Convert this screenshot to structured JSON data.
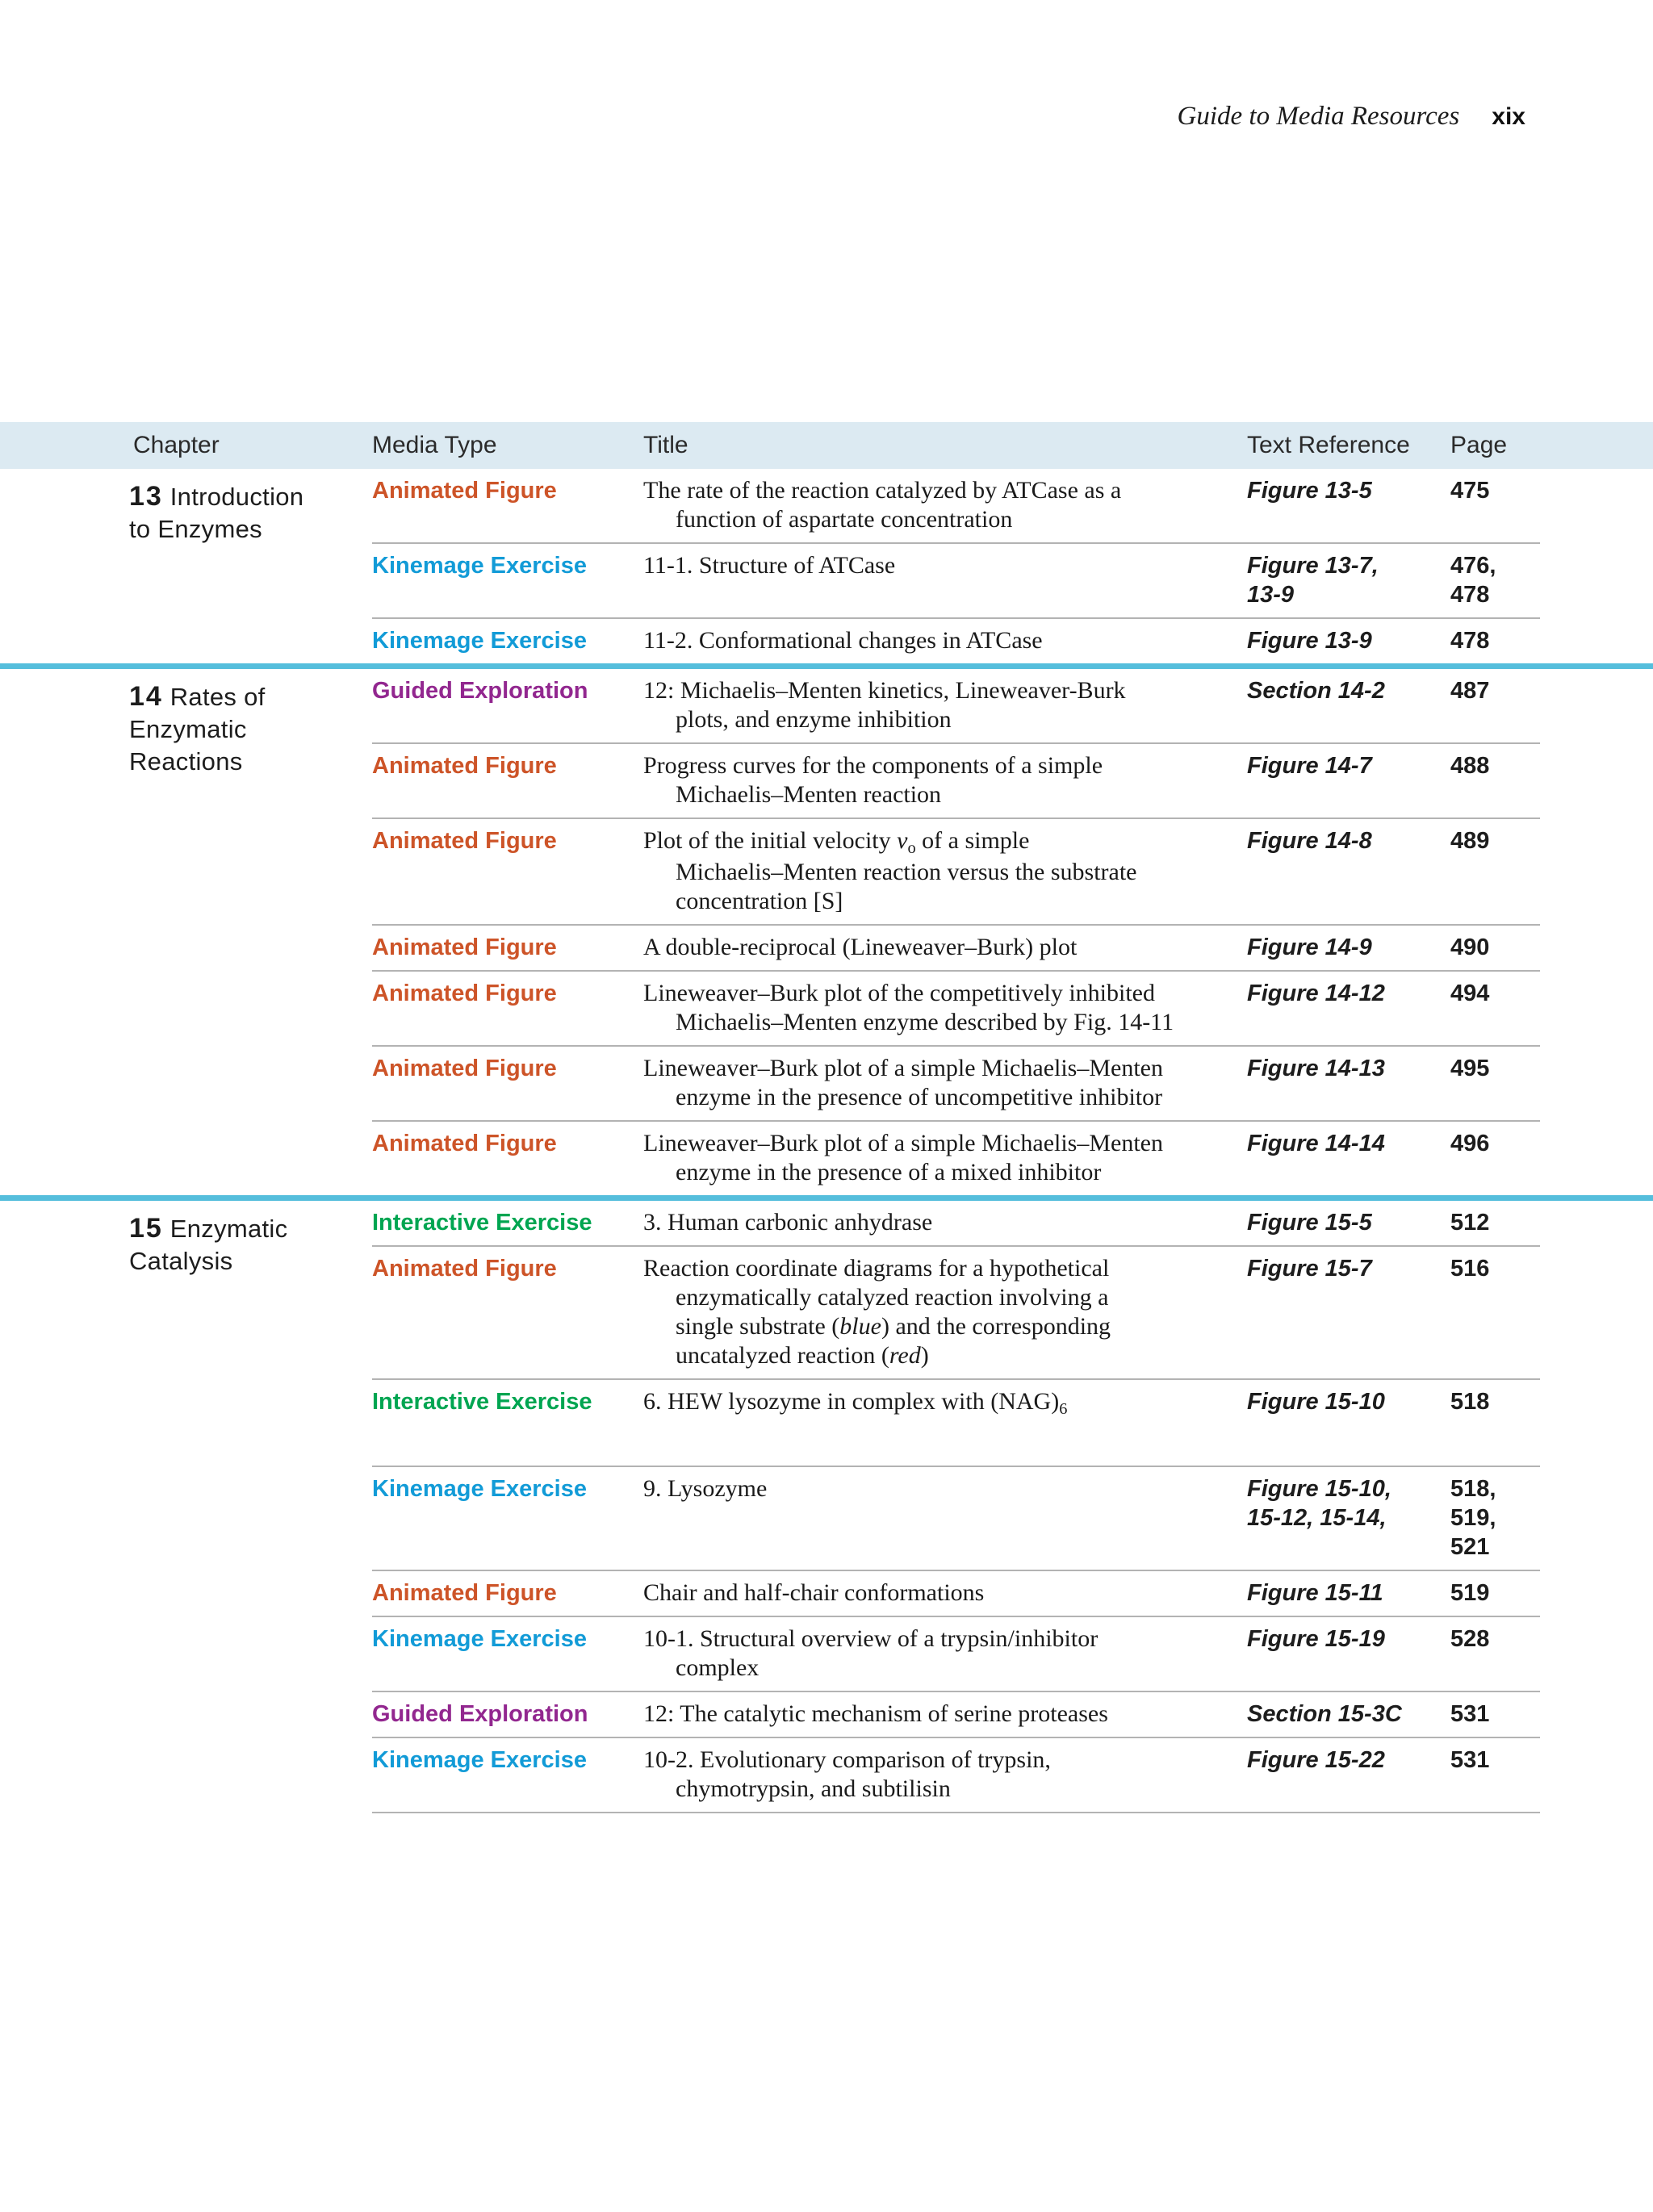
{
  "running_head": {
    "title": "Guide to Media Resources",
    "page_number": "xix"
  },
  "colors": {
    "header_band": "#dceaf2",
    "chapter_rule": "#55bedc",
    "row_rule": "#b3b3b3",
    "animated_figure": "#cd5428",
    "kinemage_exercise": "#129bd7",
    "guided_exploration": "#92278f",
    "interactive_exercise": "#00a551"
  },
  "table": {
    "columns": [
      "Chapter",
      "Media Type",
      "Title",
      "Text Reference",
      "Page"
    ],
    "media_colors": {
      "Animated Figure": "#cd5428",
      "Kinemage Exercise": "#129bd7",
      "Guided Exploration": "#92278f",
      "Interactive Exercise": "#00a551"
    },
    "chapters": [
      {
        "number": "13",
        "name_lines": [
          "Introduction",
          "to Enzymes"
        ],
        "rows": [
          {
            "media": "Animated Figure",
            "title_lines": [
              [
                {
                  "t": "The rate of the reaction catalyzed by ATCase as a"
                }
              ],
              [
                {
                  "t": "function of aspartate concentration"
                }
              ]
            ],
            "ref_lines": [
              "Figure 13-5"
            ],
            "page_lines": [
              "475"
            ]
          },
          {
            "media": "Kinemage Exercise",
            "title_lines": [
              [
                {
                  "t": "11-1. Structure of ATCase"
                }
              ]
            ],
            "ref_lines": [
              "Figure 13-7,",
              "13-9"
            ],
            "page_lines": [
              "476,",
              "478"
            ]
          },
          {
            "media": "Kinemage Exercise",
            "title_lines": [
              [
                {
                  "t": "11-2. Conformational changes in ATCase"
                }
              ]
            ],
            "ref_lines": [
              "Figure 13-9"
            ],
            "page_lines": [
              "478"
            ]
          }
        ]
      },
      {
        "number": "14",
        "name_lines": [
          "Rates of",
          "Enzymatic",
          "Reactions"
        ],
        "rows": [
          {
            "media": "Guided Exploration",
            "title_lines": [
              [
                {
                  "t": "12: Michaelis–Menten kinetics, Lineweaver-Burk"
                }
              ],
              [
                {
                  "t": "plots, and enzyme inhibition"
                }
              ]
            ],
            "ref_lines": [
              "Section 14-2"
            ],
            "page_lines": [
              "487"
            ]
          },
          {
            "media": "Animated Figure",
            "title_lines": [
              [
                {
                  "t": "Progress curves for the components of a simple"
                }
              ],
              [
                {
                  "t": "Michaelis–Menten reaction"
                }
              ]
            ],
            "ref_lines": [
              "Figure 14-7"
            ],
            "page_lines": [
              "488"
            ]
          },
          {
            "media": "Animated Figure",
            "title_lines": [
              [
                {
                  "t": "Plot of the initial velocity "
                },
                {
                  "t": "v",
                  "i": true
                },
                {
                  "t": "o",
                  "sub": true
                },
                {
                  "t": " of a simple"
                }
              ],
              [
                {
                  "t": "Michaelis–Menten reaction versus the substrate"
                }
              ],
              [
                {
                  "t": "concentration [S]"
                }
              ]
            ],
            "ref_lines": [
              "Figure 14-8"
            ],
            "page_lines": [
              "489"
            ]
          },
          {
            "media": "Animated Figure",
            "title_lines": [
              [
                {
                  "t": "A double-reciprocal (Lineweaver–Burk) plot"
                }
              ]
            ],
            "ref_lines": [
              "Figure 14-9"
            ],
            "page_lines": [
              "490"
            ]
          },
          {
            "media": "Animated Figure",
            "title_lines": [
              [
                {
                  "t": "Lineweaver–Burk plot of the competitively inhibited"
                }
              ],
              [
                {
                  "t": "Michaelis–Menten enzyme described by Fig. 14-11"
                }
              ]
            ],
            "ref_lines": [
              "Figure 14-12"
            ],
            "page_lines": [
              "494"
            ]
          },
          {
            "media": "Animated Figure",
            "title_lines": [
              [
                {
                  "t": "Lineweaver–Burk plot of a simple Michaelis–Menten"
                }
              ],
              [
                {
                  "t": "enzyme in the presence of uncompetitive inhibitor"
                }
              ]
            ],
            "ref_lines": [
              "Figure 14-13"
            ],
            "page_lines": [
              "495"
            ]
          },
          {
            "media": "Animated Figure",
            "title_lines": [
              [
                {
                  "t": "Lineweaver–Burk plot of a simple Michaelis–Menten"
                }
              ],
              [
                {
                  "t": "enzyme in the presence of a mixed inhibitor"
                }
              ]
            ],
            "ref_lines": [
              "Figure 14-14"
            ],
            "page_lines": [
              "496"
            ]
          }
        ]
      },
      {
        "number": "15",
        "name_lines": [
          "Enzymatic",
          "Catalysis"
        ],
        "rows": [
          {
            "media": "Interactive Exercise",
            "title_lines": [
              [
                {
                  "t": "3. Human carbonic anhydrase"
                }
              ]
            ],
            "ref_lines": [
              "Figure 15-5"
            ],
            "page_lines": [
              "512"
            ]
          },
          {
            "media": "Animated Figure",
            "title_lines": [
              [
                {
                  "t": "Reaction coordinate diagrams for a hypothetical"
                }
              ],
              [
                {
                  "t": "enzymatically catalyzed reaction involving a"
                }
              ],
              [
                {
                  "t": "single substrate ("
                },
                {
                  "t": "blue",
                  "i": true
                },
                {
                  "t": ") and the corresponding"
                }
              ],
              [
                {
                  "t": "uncatalyzed reaction ("
                },
                {
                  "t": "red",
                  "i": true
                },
                {
                  "t": ")"
                }
              ]
            ],
            "ref_lines": [
              "Figure 15-7"
            ],
            "page_lines": [
              "516"
            ]
          },
          {
            "media": "Interactive Exercise",
            "title_lines": [
              [
                {
                  "t": "6. HEW lysozyme in complex with (NAG)"
                },
                {
                  "t": "6",
                  "sub": true
                }
              ]
            ],
            "ref_lines": [
              "Figure 15-10"
            ],
            "page_lines": [
              "518"
            ],
            "extra_space": true
          },
          {
            "media": "Kinemage Exercise",
            "title_lines": [
              [
                {
                  "t": "9. Lysozyme"
                }
              ]
            ],
            "ref_lines": [
              "Figure 15-10,",
              "15-12, 15-14,"
            ],
            "page_lines": [
              "518,",
              "519,",
              "521"
            ]
          },
          {
            "media": "Animated Figure",
            "title_lines": [
              [
                {
                  "t": "Chair and half-chair conformations"
                }
              ]
            ],
            "ref_lines": [
              "Figure 15-11"
            ],
            "page_lines": [
              "519"
            ]
          },
          {
            "media": "Kinemage Exercise",
            "title_lines": [
              [
                {
                  "t": "10-1. Structural overview of a trypsin/inhibitor"
                }
              ],
              [
                {
                  "t": "complex"
                }
              ]
            ],
            "ref_lines": [
              "Figure 15-19"
            ],
            "page_lines": [
              "528"
            ]
          },
          {
            "media": "Guided Exploration",
            "title_lines": [
              [
                {
                  "t": "12: The catalytic mechanism of serine proteases"
                }
              ]
            ],
            "ref_lines": [
              "Section 15-3C"
            ],
            "page_lines": [
              "531"
            ]
          },
          {
            "media": "Kinemage Exercise",
            "title_lines": [
              [
                {
                  "t": "10-2. Evolutionary comparison of trypsin,"
                }
              ],
              [
                {
                  "t": "chymotrypsin, and subtilisin"
                }
              ]
            ],
            "ref_lines": [
              "Figure 15-22"
            ],
            "page_lines": [
              "531"
            ]
          }
        ]
      }
    ]
  }
}
